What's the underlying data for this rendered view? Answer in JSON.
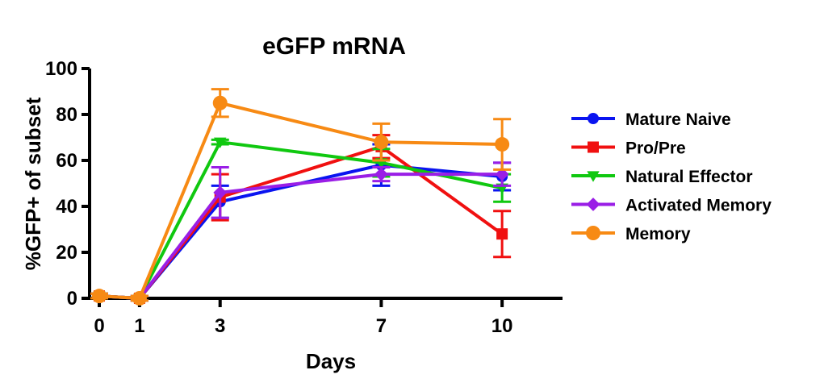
{
  "chart_data": {
    "type": "line",
    "title": "eGFP mRNA",
    "xlabel": "Days",
    "ylabel": "%GFP+ of subset",
    "xlim": [
      0,
      11.5
    ],
    "ylim": [
      0,
      100
    ],
    "xticks": [
      0,
      1,
      3,
      7,
      10
    ],
    "yticks": [
      0,
      20,
      40,
      60,
      80,
      100
    ],
    "legend_position": "right",
    "x": [
      0,
      1,
      3,
      7,
      10
    ],
    "series": [
      {
        "name": "Mature Naive",
        "color": "#0a14f0",
        "marker": "circle",
        "values": [
          1,
          0,
          42,
          58,
          53
        ],
        "errors": [
          1,
          1,
          7,
          9,
          6
        ]
      },
      {
        "name": "Pro/Pre",
        "color": "#f01010",
        "marker": "square",
        "values": [
          1,
          0,
          44,
          66,
          28
        ],
        "errors": [
          1,
          1,
          10,
          5,
          10
        ]
      },
      {
        "name": "Natural Effector",
        "color": "#10c810",
        "marker": "triangle-down",
        "values": [
          1,
          0,
          68,
          59,
          48
        ],
        "errors": [
          1,
          1,
          1,
          6,
          6
        ]
      },
      {
        "name": "Activated Memory",
        "color": "#9a1ee6",
        "marker": "diamond",
        "values": [
          1,
          0,
          46,
          54,
          54
        ],
        "errors": [
          1,
          1,
          11,
          3,
          5
        ]
      },
      {
        "name": "Memory",
        "color": "#f78a14",
        "marker": "circle",
        "values": [
          1,
          0,
          85,
          68,
          67
        ],
        "errors": [
          1,
          1,
          6,
          8,
          11
        ]
      }
    ]
  }
}
